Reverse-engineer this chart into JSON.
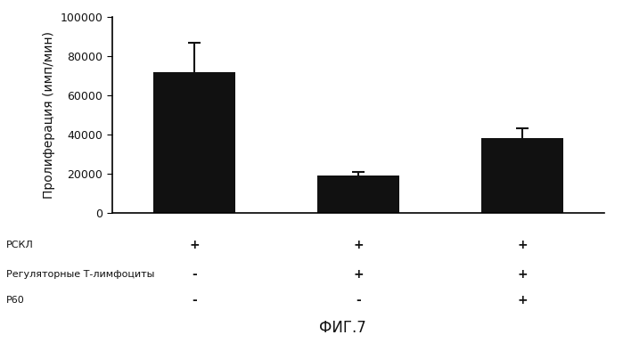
{
  "bar_values": [
    72000,
    19000,
    38000
  ],
  "bar_errors": [
    15000,
    2000,
    5000
  ],
  "bar_color": "#111111",
  "bar_positions": [
    1,
    2,
    3
  ],
  "bar_width": 0.5,
  "ylim": [
    0,
    100000
  ],
  "yticks": [
    0,
    20000,
    40000,
    60000,
    80000,
    100000
  ],
  "ytick_labels": [
    "0",
    "20000",
    "40000",
    "60000",
    "80000",
    "100000"
  ],
  "ylabel": "Пролиферация (имп/мин)",
  "xlabel_fig": "ФИГ.7",
  "row_labels": [
    "РСКЛ",
    "Регуляторные Т-лимфоциты",
    "P60"
  ],
  "row_signs": [
    [
      "+",
      "+",
      "+"
    ],
    [
      "-",
      "+",
      "+"
    ],
    [
      "-",
      "-",
      "+"
    ]
  ],
  "background_color": "#ffffff",
  "font_color": "#111111"
}
